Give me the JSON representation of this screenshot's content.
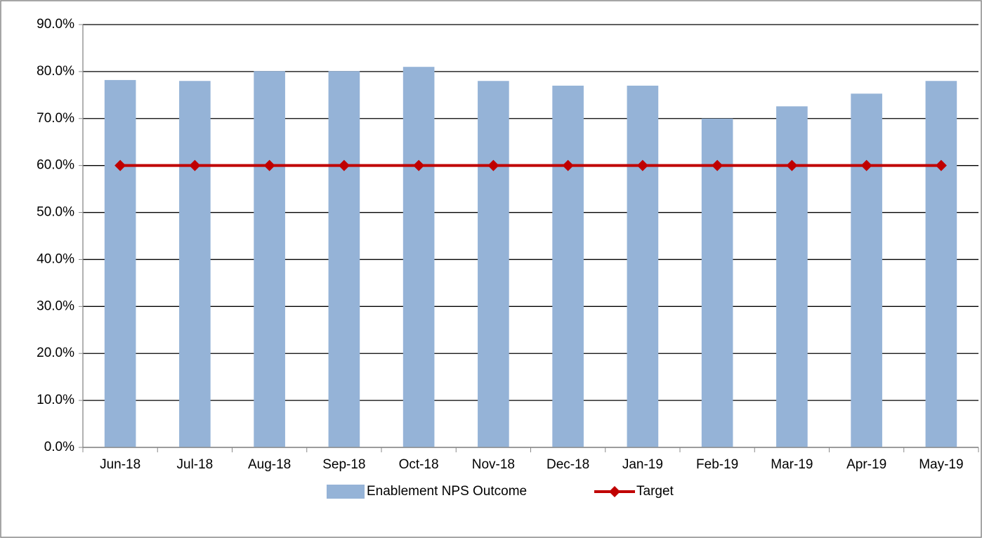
{
  "chart_data": {
    "type": "bar",
    "categories": [
      "Jun-18",
      "Jul-18",
      "Aug-18",
      "Sep-18",
      "Oct-18",
      "Nov-18",
      "Dec-18",
      "Jan-19",
      "Feb-19",
      "Mar-19",
      "Apr-19",
      "May-19"
    ],
    "series": [
      {
        "name": "Enablement NPS Outcome",
        "type": "bar",
        "color": "#95b3d7",
        "values": [
          78.2,
          78.0,
          80.1,
          80.1,
          81.0,
          78.0,
          77.0,
          77.0,
          70.0,
          72.6,
          75.3,
          78.0
        ]
      },
      {
        "name": "Target",
        "type": "line",
        "color": "#c00000",
        "values": [
          60,
          60,
          60,
          60,
          60,
          60,
          60,
          60,
          60,
          60,
          60,
          60
        ]
      }
    ],
    "ylim": [
      0,
      90
    ],
    "yticks": [
      {
        "value": 0,
        "label": "0.0%"
      },
      {
        "value": 10,
        "label": "10.0%"
      },
      {
        "value": 20,
        "label": "20.0%"
      },
      {
        "value": 30,
        "label": "30.0%"
      },
      {
        "value": 40,
        "label": "40.0%"
      },
      {
        "value": 50,
        "label": "50.0%"
      },
      {
        "value": 60,
        "label": "60.0%"
      },
      {
        "value": 70,
        "label": "70.0%"
      },
      {
        "value": 80,
        "label": "80.0%"
      },
      {
        "value": 90,
        "label": "90.0%"
      }
    ],
    "grid": true,
    "legend": "bottom"
  }
}
